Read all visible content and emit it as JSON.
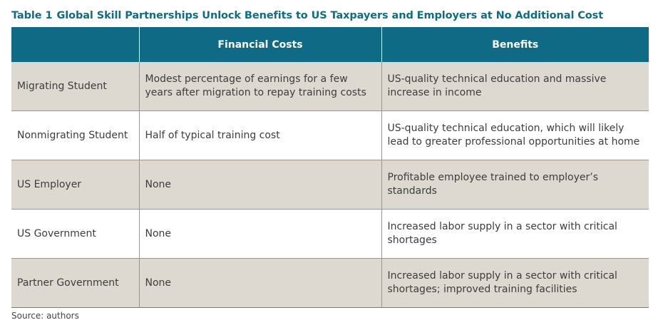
{
  "title": {
    "number": "Table 1",
    "text": "Global Skill Partnerships Unlock Benefits to US Taxpayers and Employers at No Additional Cost"
  },
  "table": {
    "headers": [
      "",
      "Financial Costs",
      "Benefits"
    ],
    "rows": [
      {
        "stakeholder": "Migrating Student",
        "costs": "Modest percentage of earnings for a few years after migration to repay training costs",
        "benefits": "US-quality technical education and massive increase in income"
      },
      {
        "stakeholder": "Nonmigrating Student",
        "costs": "Half of typical training cost",
        "benefits": "US-quality technical education, which will likely lead to greater professional opportunities at home"
      },
      {
        "stakeholder": "US Employer",
        "costs": "None",
        "benefits": "Profitable employee trained to employer’s standards"
      },
      {
        "stakeholder": "US Government",
        "costs": "None",
        "benefits": "Increased labor supply in a sector with critical shortages"
      },
      {
        "stakeholder": "Partner Government",
        "costs": "None",
        "benefits": "Increased labor supply in a sector with critical shortages; improved training facilities"
      }
    ]
  },
  "source": "Source: authors",
  "colors": {
    "header_bg": "#0f6b85",
    "title": "#0d6d87",
    "shaded_row": "#ddd9d1"
  }
}
